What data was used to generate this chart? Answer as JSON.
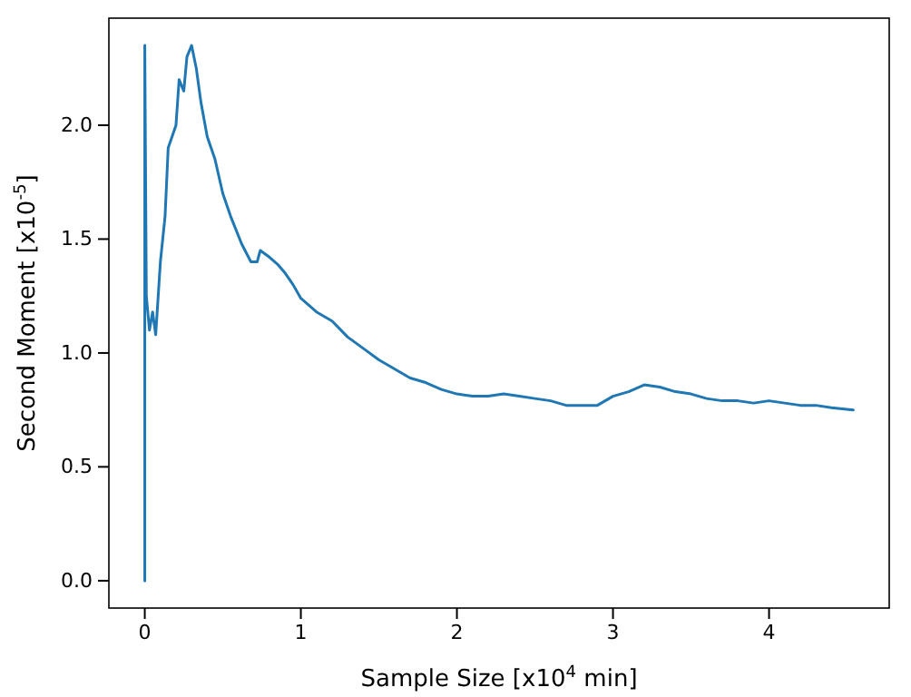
{
  "chart_data": {
    "type": "line",
    "xlabel": "Sample Size [x10$^{4}$ min]",
    "ylabel": "Second Moment [x10$^{-5}$]",
    "xlim": [
      -0.23,
      4.77
    ],
    "ylim": [
      -0.12,
      2.47
    ],
    "xticks": [
      0,
      1,
      2,
      3,
      4
    ],
    "yticks": [
      {
        "value": 0,
        "label": "0.0"
      },
      {
        "value": 0.5,
        "label": "0.5"
      },
      {
        "value": 1,
        "label": "1.0"
      },
      {
        "value": 1.5,
        "label": "1.5"
      },
      {
        "value": 2,
        "label": "2.0"
      }
    ],
    "marker": "none",
    "line_style": "solid",
    "series": [
      {
        "color": "#1f77b4",
        "x": [
          0,
          0,
          0.01,
          0.03,
          0.05,
          0.07,
          0.1,
          0.13,
          0.15,
          0.2,
          0.22,
          0.25,
          0.27,
          0.3,
          0.33,
          0.36,
          0.4,
          0.45,
          0.5,
          0.55,
          0.62,
          0.68,
          0.72,
          0.74,
          0.8,
          0.85,
          0.9,
          0.95,
          1.0,
          1.1,
          1.2,
          1.3,
          1.4,
          1.5,
          1.6,
          1.7,
          1.8,
          1.9,
          2.0,
          2.1,
          2.2,
          2.3,
          2.4,
          2.5,
          2.6,
          2.7,
          2.8,
          2.9,
          3.0,
          3.1,
          3.2,
          3.3,
          3.4,
          3.5,
          3.6,
          3.7,
          3.8,
          3.9,
          4.0,
          4.1,
          4.2,
          4.3,
          4.4,
          4.54
        ],
        "values": [
          0,
          2.35,
          1.25,
          1.1,
          1.18,
          1.08,
          1.4,
          1.6,
          1.9,
          2.0,
          2.2,
          2.15,
          2.3,
          2.35,
          2.25,
          2.1,
          1.95,
          1.85,
          1.7,
          1.6,
          1.48,
          1.4,
          1.4,
          1.45,
          1.42,
          1.39,
          1.35,
          1.3,
          1.24,
          1.18,
          1.14,
          1.07,
          1.02,
          0.97,
          0.93,
          0.89,
          0.87,
          0.84,
          0.82,
          0.81,
          0.81,
          0.82,
          0.81,
          0.8,
          0.79,
          0.77,
          0.77,
          0.77,
          0.81,
          0.83,
          0.86,
          0.85,
          0.83,
          0.82,
          0.8,
          0.79,
          0.79,
          0.78,
          0.79,
          0.78,
          0.77,
          0.77,
          0.76,
          0.75
        ]
      }
    ]
  }
}
